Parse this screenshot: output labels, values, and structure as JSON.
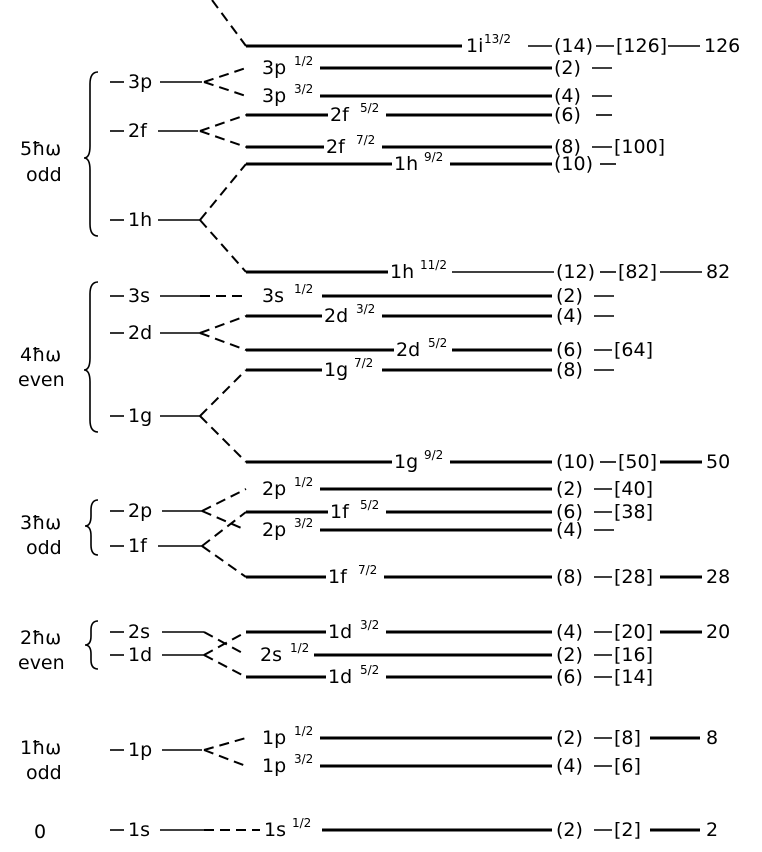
{
  "groups": [
    {
      "energy": "5ħω",
      "parity": "odd"
    },
    {
      "energy": "4ħω",
      "parity": "even"
    },
    {
      "energy": "3ħω",
      "parity": "odd"
    },
    {
      "energy": "2ħω",
      "parity": "even"
    },
    {
      "energy": "1ħω",
      "parity": "odd"
    },
    {
      "energy": "0",
      "parity": ""
    }
  ],
  "oscillator_levels": [
    "3p",
    "2f",
    "1h",
    "3s",
    "2d",
    "1g",
    "2p",
    "1f",
    "2s",
    "1d",
    "1p",
    "1s"
  ],
  "levels": [
    {
      "name": "1i",
      "j": "13/2",
      "degeneracy": "(14)",
      "cumulative": "[126]",
      "magic": "126"
    },
    {
      "name": "3p",
      "j": "1/2",
      "degeneracy": "(2)",
      "cumulative": "",
      "magic": ""
    },
    {
      "name": "3p",
      "j": "3/2",
      "degeneracy": "(4)",
      "cumulative": "",
      "magic": ""
    },
    {
      "name": "2f",
      "j": "5/2",
      "degeneracy": "(6)",
      "cumulative": "",
      "magic": ""
    },
    {
      "name": "2f",
      "j": "7/2",
      "degeneracy": "(8)",
      "cumulative": "[100]",
      "magic": ""
    },
    {
      "name": "1h",
      "j": "9/2",
      "degeneracy": "(10)",
      "cumulative": "",
      "magic": ""
    },
    {
      "name": "1h",
      "j": "11/2",
      "degeneracy": "(12)",
      "cumulative": "[82]",
      "magic": "82"
    },
    {
      "name": "3s",
      "j": "1/2",
      "degeneracy": "(2)",
      "cumulative": "",
      "magic": ""
    },
    {
      "name": "2d",
      "j": "3/2",
      "degeneracy": "(4)",
      "cumulative": "",
      "magic": ""
    },
    {
      "name": "2d",
      "j": "5/2",
      "degeneracy": "(6)",
      "cumulative": "[64]",
      "magic": ""
    },
    {
      "name": "1g",
      "j": "7/2",
      "degeneracy": "(8)",
      "cumulative": "",
      "magic": ""
    },
    {
      "name": "1g",
      "j": "9/2",
      "degeneracy": "(10)",
      "cumulative": "[50]",
      "magic": "50"
    },
    {
      "name": "2p",
      "j": "1/2",
      "degeneracy": "(2)",
      "cumulative": "[40]",
      "magic": ""
    },
    {
      "name": "1f",
      "j": "5/2",
      "degeneracy": "(6)",
      "cumulative": "[38]",
      "magic": ""
    },
    {
      "name": "2p",
      "j": "3/2",
      "degeneracy": "(4)",
      "cumulative": "",
      "magic": ""
    },
    {
      "name": "1f",
      "j": "7/2",
      "degeneracy": "(8)",
      "cumulative": "[28]",
      "magic": "28"
    },
    {
      "name": "1d",
      "j": "3/2",
      "degeneracy": "(4)",
      "cumulative": "[20]",
      "magic": "20"
    },
    {
      "name": "2s",
      "j": "1/2",
      "degeneracy": "(2)",
      "cumulative": "[16]",
      "magic": ""
    },
    {
      "name": "1d",
      "j": "5/2",
      "degeneracy": "(6)",
      "cumulative": "[14]",
      "magic": ""
    },
    {
      "name": "1p",
      "j": "1/2",
      "degeneracy": "(2)",
      "cumulative": "[8]",
      "magic": "8"
    },
    {
      "name": "1p",
      "j": "3/2",
      "degeneracy": "(4)",
      "cumulative": "[6]",
      "magic": ""
    },
    {
      "name": "1s",
      "j": "1/2",
      "degeneracy": "(2)",
      "cumulative": "[2]",
      "magic": "2"
    }
  ]
}
